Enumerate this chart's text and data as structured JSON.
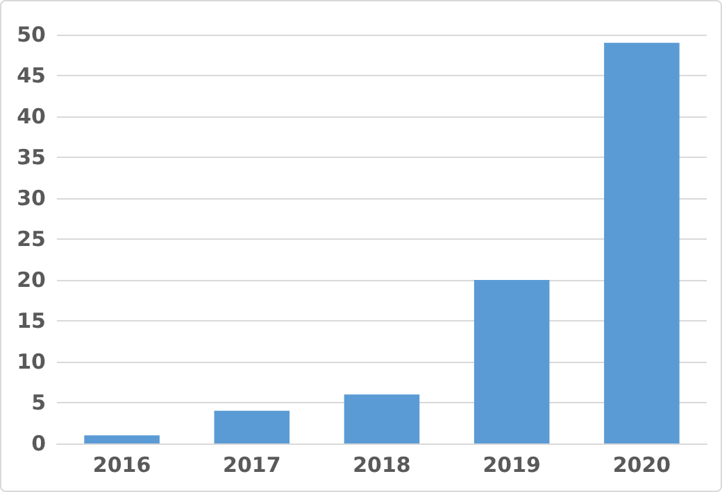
{
  "chart_data": {
    "type": "bar",
    "categories": [
      "2016",
      "2017",
      "2018",
      "2019",
      "2020"
    ],
    "values": [
      1,
      4,
      6,
      20,
      49
    ],
    "color": "#5b9bd5",
    "ylim": [
      0,
      50
    ],
    "yticks": [
      0,
      5,
      10,
      15,
      20,
      25,
      30,
      35,
      40,
      45,
      50
    ],
    "grid": "y"
  }
}
